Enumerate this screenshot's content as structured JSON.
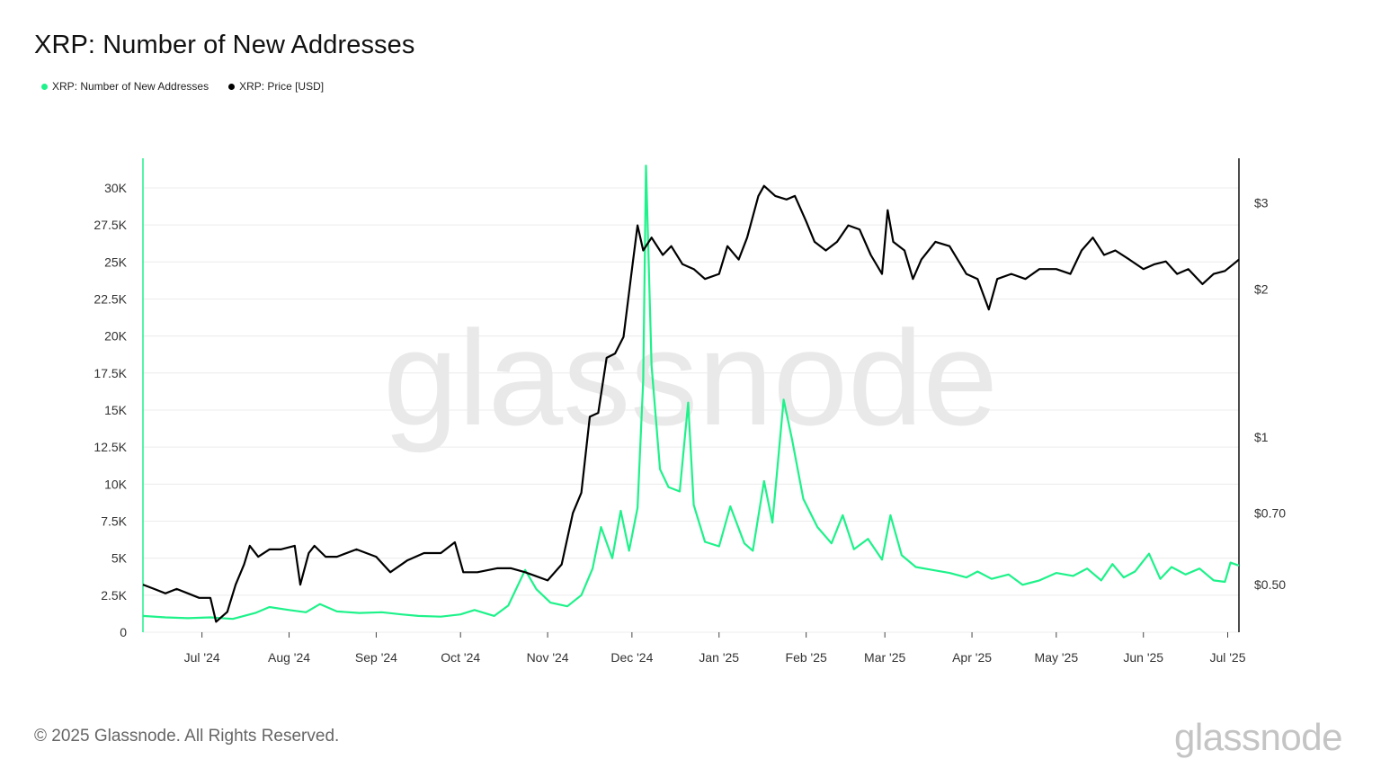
{
  "title": "XRP: Number of New Addresses",
  "legend": [
    {
      "label": "XRP: Number of New Addresses",
      "color": "#1ef28a"
    },
    {
      "label": "XRP: Price [USD]",
      "color": "#000000"
    }
  ],
  "watermark": "glassnode",
  "footer": "© 2025 Glassnode. All Rights Reserved.",
  "brand": "glassnode",
  "chart_data": {
    "type": "line",
    "x_axis": {
      "range": [
        "2024-06-10",
        "2025-07-05"
      ],
      "ticks": [
        "Jul '24",
        "Aug '24",
        "Sep '24",
        "Oct '24",
        "Nov '24",
        "Dec '24",
        "Jan '25",
        "Feb '25",
        "Mar '25",
        "Apr '25",
        "May '25",
        "Jun '25",
        "Jul '25"
      ]
    },
    "y_left": {
      "range": [
        0,
        32000
      ],
      "ticks": [
        0,
        2500,
        5000,
        7500,
        10000,
        12500,
        15000,
        17500,
        20000,
        22500,
        25000,
        27500,
        30000
      ],
      "tick_labels": [
        "0",
        "2.5K",
        "5K",
        "7.5K",
        "10K",
        "12.5K",
        "15K",
        "17.5K",
        "20K",
        "22.5K",
        "25K",
        "27.5K",
        "30K"
      ]
    },
    "y_right": {
      "scale": "log",
      "range": [
        0.4,
        3.7
      ],
      "ticks": [
        0.5,
        0.7,
        1,
        2,
        3
      ],
      "tick_labels": [
        "$0.50",
        "$0.70",
        "$1",
        "$2",
        "$3"
      ]
    },
    "grid": true,
    "legend_position": "top-left",
    "series": [
      {
        "name": "XRP: Number of New Addresses",
        "axis": "left",
        "color": "#1ef28a",
        "points": [
          [
            "2024-06-10",
            1100
          ],
          [
            "2024-06-18",
            1000
          ],
          [
            "2024-06-26",
            950
          ],
          [
            "2024-07-04",
            1000
          ],
          [
            "2024-07-12",
            900
          ],
          [
            "2024-07-20",
            1300
          ],
          [
            "2024-07-25",
            1700
          ],
          [
            "2024-08-01",
            1500
          ],
          [
            "2024-08-07",
            1350
          ],
          [
            "2024-08-12",
            1900
          ],
          [
            "2024-08-18",
            1400
          ],
          [
            "2024-08-26",
            1300
          ],
          [
            "2024-09-03",
            1350
          ],
          [
            "2024-09-10",
            1200
          ],
          [
            "2024-09-16",
            1100
          ],
          [
            "2024-09-24",
            1050
          ],
          [
            "2024-10-01",
            1200
          ],
          [
            "2024-10-06",
            1500
          ],
          [
            "2024-10-13",
            1100
          ],
          [
            "2024-10-18",
            1800
          ],
          [
            "2024-10-24",
            4200
          ],
          [
            "2024-10-28",
            2900
          ],
          [
            "2024-11-02",
            2000
          ],
          [
            "2024-11-08",
            1750
          ],
          [
            "2024-11-13",
            2500
          ],
          [
            "2024-11-17",
            4300
          ],
          [
            "2024-11-20",
            7100
          ],
          [
            "2024-11-24",
            5000
          ],
          [
            "2024-11-27",
            8200
          ],
          [
            "2024-11-30",
            5500
          ],
          [
            "2024-12-03",
            8400
          ],
          [
            "2024-12-05",
            17000
          ],
          [
            "2024-12-06",
            31500
          ],
          [
            "2024-12-08",
            18000
          ],
          [
            "2024-12-11",
            11000
          ],
          [
            "2024-12-14",
            9800
          ],
          [
            "2024-12-18",
            9500
          ],
          [
            "2024-12-21",
            15500
          ],
          [
            "2024-12-23",
            8600
          ],
          [
            "2024-12-27",
            6100
          ],
          [
            "2025-01-01",
            5800
          ],
          [
            "2025-01-05",
            8500
          ],
          [
            "2025-01-10",
            6000
          ],
          [
            "2025-01-13",
            5500
          ],
          [
            "2025-01-17",
            10200
          ],
          [
            "2025-01-20",
            7400
          ],
          [
            "2025-01-24",
            15700
          ],
          [
            "2025-01-27",
            13000
          ],
          [
            "2025-01-31",
            9000
          ],
          [
            "2025-02-05",
            7100
          ],
          [
            "2025-02-10",
            6000
          ],
          [
            "2025-02-14",
            7900
          ],
          [
            "2025-02-18",
            5600
          ],
          [
            "2025-02-23",
            6300
          ],
          [
            "2025-02-28",
            4900
          ],
          [
            "2025-03-03",
            7900
          ],
          [
            "2025-03-07",
            5200
          ],
          [
            "2025-03-12",
            4400
          ],
          [
            "2025-03-18",
            4200
          ],
          [
            "2025-03-24",
            4000
          ],
          [
            "2025-03-30",
            3700
          ],
          [
            "2025-04-03",
            4100
          ],
          [
            "2025-04-08",
            3600
          ],
          [
            "2025-04-14",
            3900
          ],
          [
            "2025-04-19",
            3200
          ],
          [
            "2025-04-25",
            3500
          ],
          [
            "2025-05-01",
            4000
          ],
          [
            "2025-05-07",
            3800
          ],
          [
            "2025-05-12",
            4300
          ],
          [
            "2025-05-17",
            3500
          ],
          [
            "2025-05-21",
            4600
          ],
          [
            "2025-05-25",
            3700
          ],
          [
            "2025-05-29",
            4100
          ],
          [
            "2025-06-03",
            5300
          ],
          [
            "2025-06-07",
            3600
          ],
          [
            "2025-06-11",
            4400
          ],
          [
            "2025-06-16",
            3900
          ],
          [
            "2025-06-21",
            4300
          ],
          [
            "2025-06-26",
            3500
          ],
          [
            "2025-06-30",
            3400
          ],
          [
            "2025-07-02",
            4700
          ],
          [
            "2025-07-05",
            4500
          ]
        ]
      },
      {
        "name": "XRP: Price [USD]",
        "axis": "right",
        "color": "#000000",
        "points": [
          [
            "2024-06-10",
            0.5
          ],
          [
            "2024-06-14",
            0.49
          ],
          [
            "2024-06-18",
            0.48
          ],
          [
            "2024-06-22",
            0.49
          ],
          [
            "2024-06-26",
            0.48
          ],
          [
            "2024-06-30",
            0.47
          ],
          [
            "2024-07-04",
            0.47
          ],
          [
            "2024-07-06",
            0.42
          ],
          [
            "2024-07-08",
            0.43
          ],
          [
            "2024-07-10",
            0.44
          ],
          [
            "2024-07-13",
            0.5
          ],
          [
            "2024-07-16",
            0.55
          ],
          [
            "2024-07-18",
            0.6
          ],
          [
            "2024-07-21",
            0.57
          ],
          [
            "2024-07-25",
            0.59
          ],
          [
            "2024-07-29",
            0.59
          ],
          [
            "2024-08-03",
            0.6
          ],
          [
            "2024-08-05",
            0.5
          ],
          [
            "2024-08-08",
            0.58
          ],
          [
            "2024-08-10",
            0.6
          ],
          [
            "2024-08-14",
            0.57
          ],
          [
            "2024-08-18",
            0.57
          ],
          [
            "2024-08-25",
            0.59
          ],
          [
            "2024-09-01",
            0.57
          ],
          [
            "2024-09-06",
            0.53
          ],
          [
            "2024-09-12",
            0.56
          ],
          [
            "2024-09-18",
            0.58
          ],
          [
            "2024-09-24",
            0.58
          ],
          [
            "2024-09-29",
            0.61
          ],
          [
            "2024-10-02",
            0.53
          ],
          [
            "2024-10-07",
            0.53
          ],
          [
            "2024-10-14",
            0.54
          ],
          [
            "2024-10-19",
            0.54
          ],
          [
            "2024-10-24",
            0.53
          ],
          [
            "2024-10-28",
            0.52
          ],
          [
            "2024-11-01",
            0.51
          ],
          [
            "2024-11-06",
            0.55
          ],
          [
            "2024-11-10",
            0.7
          ],
          [
            "2024-11-13",
            0.77
          ],
          [
            "2024-11-16",
            1.1
          ],
          [
            "2024-11-19",
            1.12
          ],
          [
            "2024-11-22",
            1.45
          ],
          [
            "2024-11-25",
            1.48
          ],
          [
            "2024-11-28",
            1.6
          ],
          [
            "2024-12-01",
            2.2
          ],
          [
            "2024-12-03",
            2.7
          ],
          [
            "2024-12-05",
            2.4
          ],
          [
            "2024-12-08",
            2.55
          ],
          [
            "2024-12-12",
            2.35
          ],
          [
            "2024-12-15",
            2.45
          ],
          [
            "2024-12-19",
            2.25
          ],
          [
            "2024-12-23",
            2.2
          ],
          [
            "2024-12-27",
            2.1
          ],
          [
            "2025-01-01",
            2.15
          ],
          [
            "2025-01-04",
            2.45
          ],
          [
            "2025-01-08",
            2.3
          ],
          [
            "2025-01-11",
            2.55
          ],
          [
            "2025-01-15",
            3.1
          ],
          [
            "2025-01-17",
            3.25
          ],
          [
            "2025-01-21",
            3.1
          ],
          [
            "2025-01-25",
            3.05
          ],
          [
            "2025-01-28",
            3.1
          ],
          [
            "2025-02-01",
            2.75
          ],
          [
            "2025-02-04",
            2.5
          ],
          [
            "2025-02-08",
            2.4
          ],
          [
            "2025-02-12",
            2.5
          ],
          [
            "2025-02-16",
            2.7
          ],
          [
            "2025-02-20",
            2.65
          ],
          [
            "2025-02-24",
            2.35
          ],
          [
            "2025-02-28",
            2.15
          ],
          [
            "2025-03-02",
            2.9
          ],
          [
            "2025-03-04",
            2.5
          ],
          [
            "2025-03-08",
            2.4
          ],
          [
            "2025-03-11",
            2.1
          ],
          [
            "2025-03-14",
            2.3
          ],
          [
            "2025-03-19",
            2.5
          ],
          [
            "2025-03-24",
            2.45
          ],
          [
            "2025-03-30",
            2.15
          ],
          [
            "2025-04-03",
            2.1
          ],
          [
            "2025-04-07",
            1.82
          ],
          [
            "2025-04-10",
            2.1
          ],
          [
            "2025-04-15",
            2.15
          ],
          [
            "2025-04-20",
            2.1
          ],
          [
            "2025-04-25",
            2.2
          ],
          [
            "2025-05-01",
            2.2
          ],
          [
            "2025-05-06",
            2.15
          ],
          [
            "2025-05-10",
            2.4
          ],
          [
            "2025-05-14",
            2.55
          ],
          [
            "2025-05-18",
            2.35
          ],
          [
            "2025-05-22",
            2.4
          ],
          [
            "2025-05-27",
            2.3
          ],
          [
            "2025-06-01",
            2.2
          ],
          [
            "2025-06-05",
            2.25
          ],
          [
            "2025-06-09",
            2.28
          ],
          [
            "2025-06-13",
            2.15
          ],
          [
            "2025-06-17",
            2.2
          ],
          [
            "2025-06-22",
            2.05
          ],
          [
            "2025-06-26",
            2.15
          ],
          [
            "2025-06-30",
            2.18
          ],
          [
            "2025-07-03",
            2.25
          ],
          [
            "2025-07-05",
            2.3
          ]
        ]
      }
    ]
  }
}
